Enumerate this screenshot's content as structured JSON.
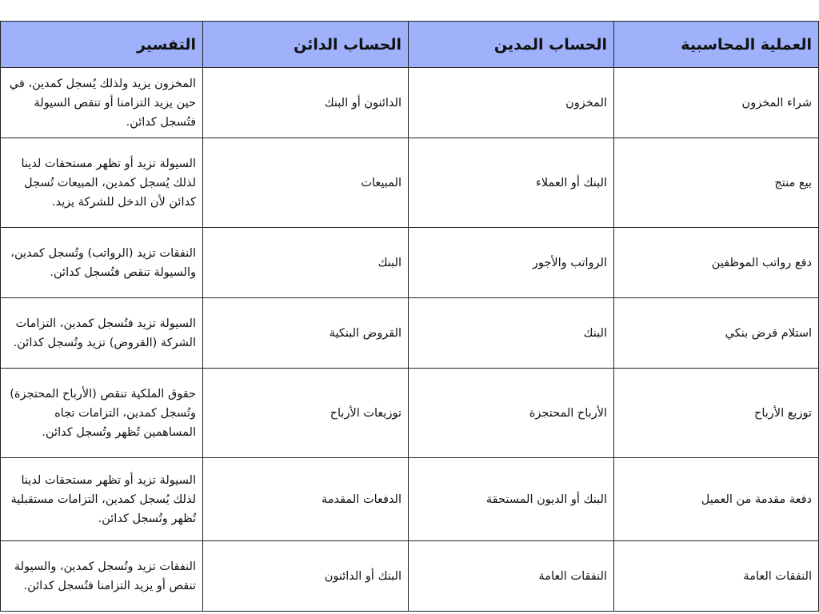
{
  "header_color": "#9fb1fb",
  "headers": [
    "العملية المحاسبية",
    "الحساب المدين",
    "الحساب الدائن",
    "التفسير"
  ],
  "rows": [
    {
      "operation": "شراء المخزون",
      "debit": "المخزون",
      "credit": "الدائنون أو البنك",
      "explanation": "المخزون يزيد ولذلك يُسجل كمدين، في حين يزيد التزامنا أو تنقص السيولة فتُسجل كدائن."
    },
    {
      "operation": "بيع منتج",
      "debit": "البنك أو العملاء",
      "credit": "المبيعات",
      "explanation": "السيولة تزيد أو تظهر مستحقات لدينا لذلك يُسجل كمدين، المبيعات تُسجل كدائن لأن الدخل للشركة يزيد."
    },
    {
      "operation": "دفع رواتب الموظفين",
      "debit": "الرواتب والأجور",
      "credit": "البنك",
      "explanation": "النفقات تزيد (الرواتب) وتُسجل كمدين، والسيولة تنقص فتُسجل كدائن."
    },
    {
      "operation": "استلام قرض بنكي",
      "debit": "البنك",
      "credit": "القروض البنكية",
      "explanation": "السيولة تزيد فتُسجل كمدين، التزامات الشركة (القروض) تزيد وتُسجل كدائن."
    },
    {
      "operation": "توزيع الأرباح",
      "debit": "الأرباح المحتجزة",
      "credit": "توزيعات الأرباح",
      "explanation": "حقوق الملكية تنقص (الأرباح المحتجزة) وتُسجل كمدين، التزامات تجاه المساهمين تُظهر وتُسجل كدائن."
    },
    {
      "operation": "دفعة مقدمة من العميل",
      "debit": "البنك أو الديون المستحقة",
      "credit": "الدفعات المقدمة",
      "explanation": "السيولة تزيد أو تظهر مستحقات لدينا لذلك يُسجل كمدين، التزامات مستقبلية تُظهر وتُسجل كدائن."
    },
    {
      "operation": "النفقات العامة",
      "debit": "النفقات العامة",
      "credit": "البنك أو الدائنون",
      "explanation": "النفقات تزيد وتُسجل كمدين، والسيولة تنقص أو يزيد التزامنا فتُسجل كدائن."
    }
  ]
}
